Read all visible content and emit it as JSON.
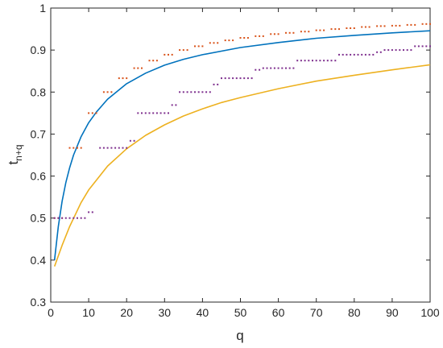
{
  "chart_data": {
    "type": "line",
    "xlabel": "q",
    "ylabel": {
      "main": "t",
      "subscript": "n+q"
    },
    "xlim": [
      0,
      100
    ],
    "ylim": [
      0.3,
      1
    ],
    "x_ticks": [
      0,
      10,
      20,
      30,
      40,
      50,
      60,
      70,
      80,
      90,
      100
    ],
    "y_ticks": [
      0.3,
      0.4,
      0.5,
      0.6,
      0.7,
      0.8,
      0.9,
      1
    ],
    "y_tick_labels": [
      "0.3",
      "0.4",
      "0.5",
      "0.6",
      "0.7",
      "0.8",
      "0.9",
      "1"
    ],
    "grid": false,
    "box": true,
    "series": [
      {
        "kind": "curve",
        "color": "#0072BD",
        "points": [
          [
            1,
            0.4
          ],
          [
            2,
            0.48
          ],
          [
            3,
            0.54
          ],
          [
            4,
            0.585
          ],
          [
            5,
            0.62
          ],
          [
            6,
            0.65
          ],
          [
            8,
            0.694
          ],
          [
            10,
            0.727
          ],
          [
            12,
            0.752
          ],
          [
            15,
            0.783
          ],
          [
            20,
            0.82
          ],
          [
            25,
            0.845
          ],
          [
            30,
            0.864
          ],
          [
            35,
            0.878
          ],
          [
            40,
            0.889
          ],
          [
            50,
            0.906
          ],
          [
            60,
            0.918
          ],
          [
            70,
            0.928
          ],
          [
            80,
            0.935
          ],
          [
            90,
            0.941
          ],
          [
            100,
            0.946
          ]
        ]
      },
      {
        "kind": "curve",
        "color": "#EDB120",
        "points": [
          [
            1,
            0.385
          ],
          [
            2,
            0.41
          ],
          [
            3,
            0.435
          ],
          [
            5,
            0.48
          ],
          [
            8,
            0.537
          ],
          [
            10,
            0.567
          ],
          [
            15,
            0.624
          ],
          [
            20,
            0.665
          ],
          [
            25,
            0.697
          ],
          [
            30,
            0.722
          ],
          [
            35,
            0.743
          ],
          [
            40,
            0.76
          ],
          [
            45,
            0.775
          ],
          [
            50,
            0.787
          ],
          [
            60,
            0.808
          ],
          [
            70,
            0.826
          ],
          [
            80,
            0.84
          ],
          [
            90,
            0.853
          ],
          [
            100,
            0.865
          ]
        ]
      },
      {
        "kind": "markers",
        "color": "#D95319",
        "steps": [
          [
            1,
            0.5
          ],
          [
            2,
            0.5
          ],
          [
            3,
            0.5
          ],
          [
            5,
            0.667
          ],
          [
            6,
            0.667
          ],
          [
            7,
            0.667
          ],
          [
            8,
            0.667
          ],
          [
            10,
            0.75
          ],
          [
            11,
            0.75
          ],
          [
            12,
            0.75
          ],
          [
            14,
            0.8
          ],
          [
            15,
            0.8
          ],
          [
            16,
            0.8
          ],
          [
            18,
            0.833
          ],
          [
            19,
            0.833
          ],
          [
            20,
            0.833
          ],
          [
            22,
            0.857
          ],
          [
            23,
            0.857
          ],
          [
            24,
            0.857
          ],
          [
            26,
            0.875
          ],
          [
            27,
            0.875
          ],
          [
            28,
            0.875
          ],
          [
            30,
            0.889
          ],
          [
            31,
            0.889
          ],
          [
            32,
            0.889
          ],
          [
            34,
            0.9
          ],
          [
            35,
            0.9
          ],
          [
            36,
            0.9
          ],
          [
            38,
            0.909
          ],
          [
            39,
            0.909
          ],
          [
            40,
            0.909
          ],
          [
            42,
            0.917
          ],
          [
            43,
            0.917
          ],
          [
            44,
            0.917
          ],
          [
            46,
            0.923
          ],
          [
            47,
            0.923
          ],
          [
            48,
            0.923
          ],
          [
            50,
            0.929
          ],
          [
            51,
            0.929
          ],
          [
            52,
            0.929
          ],
          [
            54,
            0.933
          ],
          [
            55,
            0.933
          ],
          [
            56,
            0.933
          ],
          [
            58,
            0.938
          ],
          [
            59,
            0.938
          ],
          [
            60,
            0.938
          ],
          [
            62,
            0.941
          ],
          [
            63,
            0.941
          ],
          [
            64,
            0.941
          ],
          [
            66,
            0.944
          ],
          [
            67,
            0.944
          ],
          [
            68,
            0.944
          ],
          [
            70,
            0.947
          ],
          [
            71,
            0.947
          ],
          [
            72,
            0.947
          ],
          [
            74,
            0.95
          ],
          [
            75,
            0.95
          ],
          [
            76,
            0.95
          ],
          [
            78,
            0.952
          ],
          [
            79,
            0.952
          ],
          [
            80,
            0.952
          ],
          [
            82,
            0.955
          ],
          [
            83,
            0.955
          ],
          [
            84,
            0.955
          ],
          [
            86,
            0.957
          ],
          [
            87,
            0.957
          ],
          [
            88,
            0.957
          ],
          [
            90,
            0.958
          ],
          [
            91,
            0.958
          ],
          [
            92,
            0.958
          ],
          [
            94,
            0.96
          ],
          [
            95,
            0.96
          ],
          [
            96,
            0.96
          ],
          [
            98,
            0.962
          ],
          [
            99,
            0.962
          ],
          [
            100,
            0.962
          ]
        ]
      },
      {
        "kind": "markers",
        "color": "#7E2F8E",
        "steps": [
          [
            1,
            0.5
          ],
          [
            2,
            0.5
          ],
          [
            3,
            0.5
          ],
          [
            4,
            0.5
          ],
          [
            5,
            0.5
          ],
          [
            6,
            0.5
          ],
          [
            7,
            0.5
          ],
          [
            8,
            0.5
          ],
          [
            9,
            0.5
          ],
          [
            10,
            0.514
          ],
          [
            11,
            0.514
          ],
          [
            13,
            0.667
          ],
          [
            14,
            0.667
          ],
          [
            15,
            0.667
          ],
          [
            16,
            0.667
          ],
          [
            17,
            0.667
          ],
          [
            18,
            0.667
          ],
          [
            19,
            0.667
          ],
          [
            20,
            0.667
          ],
          [
            21,
            0.684
          ],
          [
            22,
            0.684
          ],
          [
            23,
            0.75
          ],
          [
            24,
            0.75
          ],
          [
            25,
            0.75
          ],
          [
            26,
            0.75
          ],
          [
            27,
            0.75
          ],
          [
            28,
            0.75
          ],
          [
            29,
            0.75
          ],
          [
            30,
            0.75
          ],
          [
            31,
            0.75
          ],
          [
            32,
            0.769
          ],
          [
            33,
            0.769
          ],
          [
            34,
            0.8
          ],
          [
            35,
            0.8
          ],
          [
            36,
            0.8
          ],
          [
            37,
            0.8
          ],
          [
            38,
            0.8
          ],
          [
            39,
            0.8
          ],
          [
            40,
            0.8
          ],
          [
            41,
            0.8
          ],
          [
            42,
            0.8
          ],
          [
            43,
            0.818
          ],
          [
            44,
            0.818
          ],
          [
            45,
            0.833
          ],
          [
            46,
            0.833
          ],
          [
            47,
            0.833
          ],
          [
            48,
            0.833
          ],
          [
            49,
            0.833
          ],
          [
            50,
            0.833
          ],
          [
            51,
            0.833
          ],
          [
            52,
            0.833
          ],
          [
            53,
            0.833
          ],
          [
            54,
            0.853
          ],
          [
            55,
            0.853
          ],
          [
            56,
            0.857
          ],
          [
            57,
            0.857
          ],
          [
            58,
            0.857
          ],
          [
            59,
            0.857
          ],
          [
            60,
            0.857
          ],
          [
            61,
            0.857
          ],
          [
            62,
            0.857
          ],
          [
            63,
            0.857
          ],
          [
            64,
            0.857
          ],
          [
            65,
            0.875
          ],
          [
            66,
            0.875
          ],
          [
            67,
            0.875
          ],
          [
            68,
            0.875
          ],
          [
            69,
            0.875
          ],
          [
            70,
            0.875
          ],
          [
            71,
            0.875
          ],
          [
            72,
            0.875
          ],
          [
            73,
            0.875
          ],
          [
            74,
            0.875
          ],
          [
            75,
            0.875
          ],
          [
            76,
            0.889
          ],
          [
            77,
            0.889
          ],
          [
            78,
            0.889
          ],
          [
            79,
            0.889
          ],
          [
            80,
            0.889
          ],
          [
            81,
            0.889
          ],
          [
            82,
            0.889
          ],
          [
            83,
            0.889
          ],
          [
            84,
            0.889
          ],
          [
            85,
            0.889
          ],
          [
            86,
            0.895
          ],
          [
            87,
            0.895
          ],
          [
            88,
            0.9
          ],
          [
            89,
            0.9
          ],
          [
            90,
            0.9
          ],
          [
            91,
            0.9
          ],
          [
            92,
            0.9
          ],
          [
            93,
            0.9
          ],
          [
            94,
            0.9
          ],
          [
            95,
            0.9
          ],
          [
            96,
            0.909
          ],
          [
            97,
            0.909
          ],
          [
            98,
            0.909
          ],
          [
            99,
            0.909
          ],
          [
            100,
            0.909
          ]
        ]
      }
    ]
  }
}
